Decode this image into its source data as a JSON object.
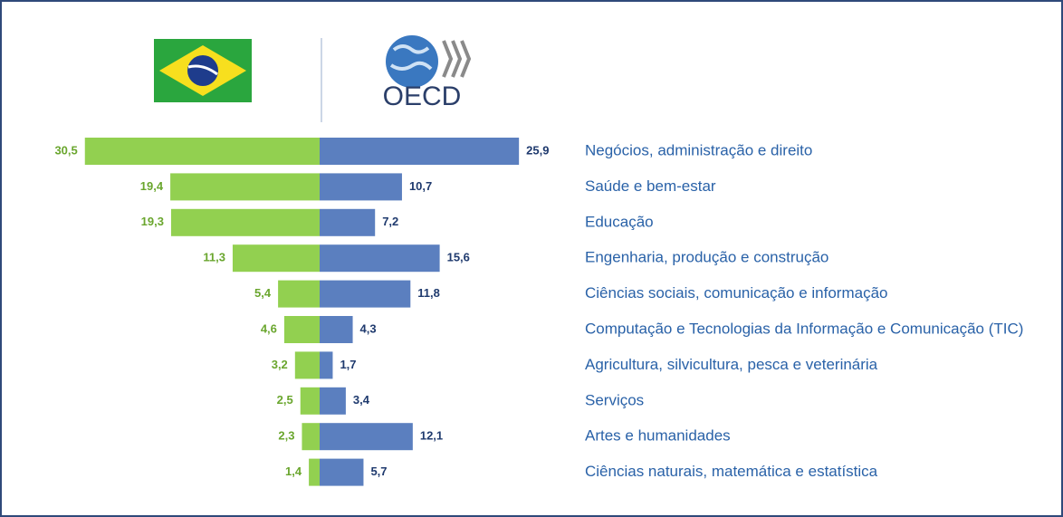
{
  "chart_data": {
    "type": "butterfly-bar",
    "logo_text": "OECD",
    "categories": [
      "Negócios, administração e direito",
      "Saúde e bem-estar",
      "Educação",
      "Engenharia, produção e construção",
      "Ciências sociais, comunicação e informação",
      "Computação e Tecnologias da Informação e Comunicação (TIC)",
      "Agricultura, silvicultura, pesca e veterinária",
      "Serviços",
      "Artes e humanidades",
      "Ciências naturais, matemática e estatística"
    ],
    "series": [
      {
        "color": "#92d050",
        "label_color": "#6aa62e",
        "side": "left",
        "values": [
          30.5,
          19.4,
          19.3,
          11.3,
          5.4,
          4.6,
          3.2,
          2.5,
          2.3,
          1.4
        ],
        "value_labels": [
          "30,5",
          "19,4",
          "19,3",
          "11,3",
          "5,4",
          "4,6",
          "3,2",
          "2,5",
          "2,3",
          "1,4"
        ]
      },
      {
        "color": "#5b7fbf",
        "label_color": "#1f3a6e",
        "side": "right",
        "values": [
          25.9,
          10.7,
          7.2,
          15.6,
          11.8,
          4.3,
          1.7,
          3.4,
          12.1,
          5.7
        ],
        "value_labels": [
          "25,9",
          "10,7",
          "7,2",
          "15,6",
          "11,8",
          "4,3",
          "1,7",
          "3,4",
          "12,1",
          "5,7"
        ]
      }
    ]
  }
}
